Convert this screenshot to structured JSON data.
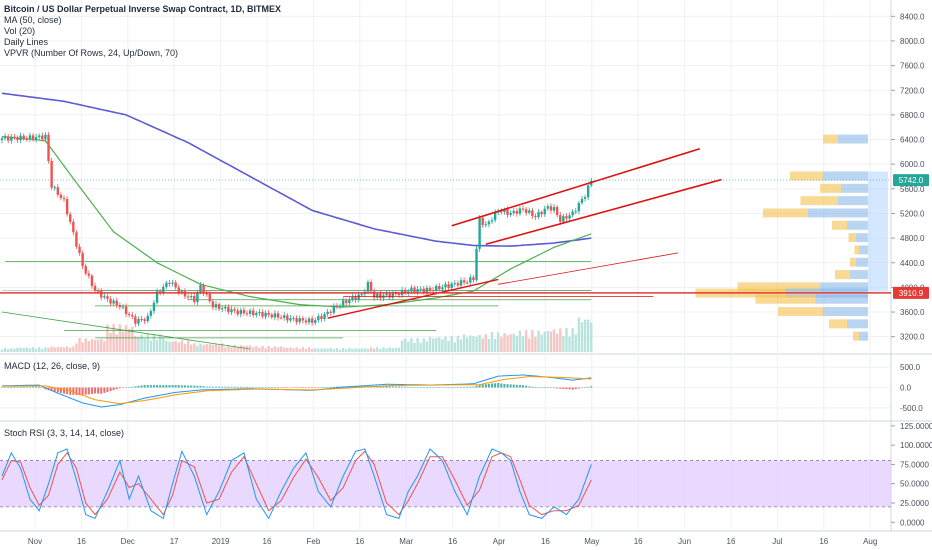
{
  "legend": {
    "title": "Bitcoin / US Dollar Perpetual Inverse Swap Contract, 1D, BITMEX",
    "lines": [
      "MA (50, close)",
      "Vol (20)",
      "Daily Lines",
      "VPVR (Number Of Rows, 24, Up/Down, 70)"
    ]
  },
  "panes": {
    "macd_label": "MACD (12, 26, close, 9)",
    "rsi_label": "Stoch RSI (3, 3, 14, 14, close)"
  },
  "badges": {
    "last_price": "5742.0",
    "poc_price": "3910.9"
  },
  "colors": {
    "up": "#26a69a",
    "down": "#ef5350",
    "ma50": "#4caf50",
    "ma200": "#5b5bd6",
    "channel": "#e01010",
    "support": "#43a047",
    "macd": "#2196f3",
    "signal": "#ff9800",
    "rsi_k": "#2196f3",
    "rsi_d": "#ef5350",
    "rsi_band": "#e1c9ff"
  },
  "chart_data": [
    {
      "type": "line",
      "pane": "price",
      "title": "Bitcoin / US Dollar Perpetual Inverse Swap Contract, 1D, BITMEX",
      "y_ticks": [
        "8400.0",
        "8000.0",
        "7600.0",
        "7200.0",
        "6800.0",
        "6400.0",
        "6000.0",
        "5600.0",
        "5200.0",
        "4800.0",
        "4400.0",
        "4000.0",
        "3600.0",
        "3200.0"
      ],
      "ylim": [
        3000,
        8600
      ],
      "x_ticks": [
        "Nov",
        "16",
        "Dec",
        "17",
        "2019",
        "16",
        "Feb",
        "16",
        "Mar",
        "16",
        "Apr",
        "16",
        "May",
        "16",
        "Jun",
        "16",
        "Jul",
        "16",
        "Aug"
      ],
      "xlim_days": [
        0,
        286
      ],
      "close_keypoints": [
        [
          0,
          6420
        ],
        [
          10,
          6430
        ],
        [
          14,
          6450
        ],
        [
          16,
          5650
        ],
        [
          20,
          5400
        ],
        [
          26,
          4350
        ],
        [
          30,
          3950
        ],
        [
          34,
          3800
        ],
        [
          38,
          3700
        ],
        [
          43,
          3450
        ],
        [
          47,
          3500
        ],
        [
          50,
          3900
        ],
        [
          54,
          4100
        ],
        [
          58,
          3900
        ],
        [
          62,
          3800
        ],
        [
          64,
          4020
        ],
        [
          68,
          3700
        ],
        [
          72,
          3650
        ],
        [
          76,
          3600
        ],
        [
          82,
          3580
        ],
        [
          88,
          3540
        ],
        [
          94,
          3480
        ],
        [
          100,
          3450
        ],
        [
          104,
          3550
        ],
        [
          108,
          3700
        ],
        [
          112,
          3800
        ],
        [
          116,
          3880
        ],
        [
          118,
          4050
        ],
        [
          120,
          3850
        ],
        [
          126,
          3880
        ],
        [
          132,
          3960
        ],
        [
          138,
          3960
        ],
        [
          144,
          4030
        ],
        [
          148,
          4080
        ],
        [
          150,
          4100
        ],
        [
          152,
          4150
        ],
        [
          154,
          5100
        ],
        [
          156,
          5000
        ],
        [
          160,
          5250
        ],
        [
          164,
          5200
        ],
        [
          168,
          5270
        ],
        [
          172,
          5150
        ],
        [
          176,
          5300
        ],
        [
          178,
          5270
        ],
        [
          180,
          5090
        ],
        [
          184,
          5200
        ],
        [
          188,
          5500
        ],
        [
          190,
          5742
        ]
      ],
      "ma50_keypoints": [
        [
          0,
          6450
        ],
        [
          14,
          6380
        ],
        [
          24,
          5700
        ],
        [
          36,
          4900
        ],
        [
          50,
          4400
        ],
        [
          64,
          4050
        ],
        [
          80,
          3850
        ],
        [
          96,
          3720
        ],
        [
          110,
          3680
        ],
        [
          124,
          3720
        ],
        [
          140,
          3830
        ],
        [
          152,
          3940
        ],
        [
          164,
          4300
        ],
        [
          178,
          4650
        ],
        [
          190,
          4870
        ]
      ],
      "ma200_keypoints": [
        [
          0,
          7150
        ],
        [
          20,
          7020
        ],
        [
          40,
          6800
        ],
        [
          60,
          6350
        ],
        [
          80,
          5800
        ],
        [
          100,
          5250
        ],
        [
          120,
          4950
        ],
        [
          140,
          4750
        ],
        [
          152,
          4680
        ],
        [
          164,
          4670
        ],
        [
          178,
          4720
        ],
        [
          190,
          4800
        ]
      ],
      "volume_relative": [
        0.1,
        0.12,
        0.14,
        0.35,
        0.7,
        0.45,
        0.3,
        0.22,
        0.18,
        0.15,
        0.12,
        0.1,
        0.1,
        0.12,
        0.35,
        0.4,
        0.45,
        0.5,
        0.55,
        0.6,
        0.9
      ],
      "volume_profile": [
        {
          "price": 6400,
          "up": 0.1,
          "down": 0.2
        },
        {
          "price": 5800,
          "up": 0.22,
          "down": 0.3
        },
        {
          "price": 5600,
          "up": 0.14,
          "down": 0.18
        },
        {
          "price": 5400,
          "up": 0.25,
          "down": 0.2
        },
        {
          "price": 5200,
          "up": 0.3,
          "down": 0.4
        },
        {
          "price": 5000,
          "up": 0.1,
          "down": 0.14
        },
        {
          "price": 4800,
          "up": 0.05,
          "down": 0.08
        },
        {
          "price": 4600,
          "up": 0.03,
          "down": 0.06
        },
        {
          "price": 4400,
          "up": 0.04,
          "down": 0.08
        },
        {
          "price": 4200,
          "up": 0.1,
          "down": 0.12
        },
        {
          "price": 4000,
          "up": 0.55,
          "down": 0.32
        },
        {
          "price": 3900,
          "up": 0.6,
          "down": 0.55
        },
        {
          "price": 3800,
          "up": 0.4,
          "down": 0.35
        },
        {
          "price": 3600,
          "up": 0.3,
          "down": 0.3
        },
        {
          "price": 3400,
          "up": 0.12,
          "down": 0.14
        },
        {
          "price": 3200,
          "up": 0.04,
          "down": 0.06
        }
      ]
    },
    {
      "type": "line",
      "pane": "macd",
      "title": "MACD (12, 26, close, 9)",
      "y_ticks": [
        "500.0",
        "0.0",
        "-500.0"
      ],
      "ylim": [
        -800,
        800
      ],
      "series": [
        {
          "name": "MACD",
          "keypoints": [
            [
              0,
              40
            ],
            [
              12,
              60
            ],
            [
              18,
              -140
            ],
            [
              26,
              -380
            ],
            [
              32,
              -480
            ],
            [
              38,
              -420
            ],
            [
              46,
              -260
            ],
            [
              56,
              -120
            ],
            [
              64,
              -60
            ],
            [
              80,
              -30
            ],
            [
              100,
              -70
            ],
            [
              110,
              10
            ],
            [
              124,
              80
            ],
            [
              138,
              60
            ],
            [
              152,
              90
            ],
            [
              160,
              280
            ],
            [
              168,
              310
            ],
            [
              178,
              240
            ],
            [
              184,
              180
            ],
            [
              190,
              240
            ]
          ]
        },
        {
          "name": "Signal",
          "keypoints": [
            [
              0,
              30
            ],
            [
              14,
              40
            ],
            [
              22,
              -80
            ],
            [
              30,
              -300
            ],
            [
              38,
              -400
            ],
            [
              46,
              -320
            ],
            [
              56,
              -180
            ],
            [
              66,
              -80
            ],
            [
              82,
              -40
            ],
            [
              100,
              -60
            ],
            [
              112,
              -10
            ],
            [
              126,
              50
            ],
            [
              140,
              60
            ],
            [
              154,
              70
            ],
            [
              162,
              200
            ],
            [
              170,
              270
            ],
            [
              180,
              250
            ],
            [
              190,
              210
            ]
          ]
        }
      ]
    },
    {
      "type": "line",
      "pane": "stoch_rsi",
      "title": "Stoch RSI (3, 3, 14, 14, close)",
      "y_ticks": [
        "125.0000",
        "100.0000",
        "75.0000",
        "50.0000",
        "25.0000",
        "0.0000"
      ],
      "ylim": [
        -10,
        130
      ],
      "bands": [
        20,
        80
      ],
      "series": [
        {
          "name": "K",
          "keypoints": [
            [
              0,
              60
            ],
            [
              3,
              90
            ],
            [
              6,
              70
            ],
            [
              9,
              30
            ],
            [
              12,
              15
            ],
            [
              15,
              50
            ],
            [
              18,
              90
            ],
            [
              21,
              95
            ],
            [
              24,
              55
            ],
            [
              27,
              10
            ],
            [
              30,
              5
            ],
            [
              34,
              40
            ],
            [
              38,
              80
            ],
            [
              41,
              30
            ],
            [
              44,
              60
            ],
            [
              48,
              15
            ],
            [
              52,
              5
            ],
            [
              55,
              50
            ],
            [
              58,
              92
            ],
            [
              62,
              60
            ],
            [
              66,
              10
            ],
            [
              70,
              40
            ],
            [
              74,
              80
            ],
            [
              78,
              90
            ],
            [
              82,
              30
            ],
            [
              86,
              5
            ],
            [
              90,
              40
            ],
            [
              94,
              70
            ],
            [
              98,
              90
            ],
            [
              102,
              40
            ],
            [
              106,
              20
            ],
            [
              110,
              60
            ],
            [
              114,
              92
            ],
            [
              117,
              95
            ],
            [
              120,
              60
            ],
            [
              124,
              10
            ],
            [
              128,
              5
            ],
            [
              131,
              40
            ],
            [
              134,
              60
            ],
            [
              138,
              95
            ],
            [
              142,
              80
            ],
            [
              146,
              40
            ],
            [
              150,
              10
            ],
            [
              154,
              60
            ],
            [
              158,
              95
            ],
            [
              161,
              90
            ],
            [
              164,
              80
            ],
            [
              167,
              40
            ],
            [
              170,
              10
            ],
            [
              174,
              5
            ],
            [
              178,
              20
            ],
            [
              182,
              10
            ],
            [
              186,
              30
            ],
            [
              190,
              75
            ]
          ]
        },
        {
          "name": "D",
          "keypoints": [
            [
              0,
              55
            ],
            [
              3,
              80
            ],
            [
              6,
              78
            ],
            [
              9,
              45
            ],
            [
              12,
              22
            ],
            [
              15,
              35
            ],
            [
              18,
              75
            ],
            [
              21,
              90
            ],
            [
              24,
              70
            ],
            [
              27,
              25
            ],
            [
              30,
              10
            ],
            [
              34,
              30
            ],
            [
              38,
              65
            ],
            [
              41,
              45
            ],
            [
              44,
              50
            ],
            [
              48,
              30
            ],
            [
              52,
              10
            ],
            [
              55,
              35
            ],
            [
              58,
              80
            ],
            [
              62,
              72
            ],
            [
              66,
              25
            ],
            [
              70,
              30
            ],
            [
              74,
              65
            ],
            [
              78,
              85
            ],
            [
              82,
              50
            ],
            [
              86,
              15
            ],
            [
              90,
              28
            ],
            [
              94,
              58
            ],
            [
              98,
              82
            ],
            [
              102,
              58
            ],
            [
              106,
              28
            ],
            [
              110,
              45
            ],
            [
              114,
              80
            ],
            [
              117,
              92
            ],
            [
              120,
              75
            ],
            [
              124,
              25
            ],
            [
              128,
              10
            ],
            [
              131,
              28
            ],
            [
              134,
              50
            ],
            [
              138,
              85
            ],
            [
              142,
              85
            ],
            [
              146,
              55
            ],
            [
              150,
              22
            ],
            [
              154,
              42
            ],
            [
              158,
              85
            ],
            [
              161,
              90
            ],
            [
              164,
              85
            ],
            [
              167,
              55
            ],
            [
              170,
              22
            ],
            [
              174,
              10
            ],
            [
              178,
              15
            ],
            [
              182,
              15
            ],
            [
              186,
              22
            ],
            [
              190,
              55
            ]
          ]
        }
      ]
    }
  ]
}
